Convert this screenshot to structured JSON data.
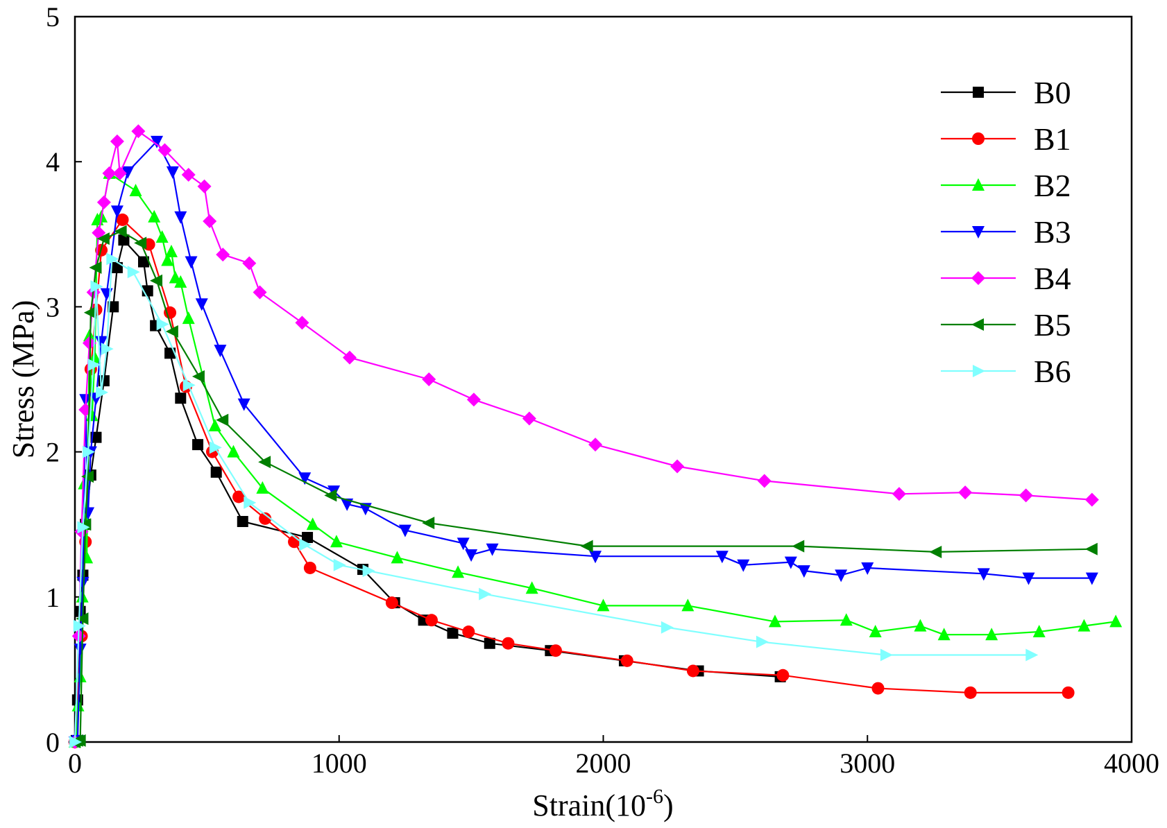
{
  "chart_data": {
    "type": "line",
    "title": "",
    "xlabel": "Strain",
    "xlabel_unit_base": "10",
    "xlabel_unit_exp": "-6",
    "ylabel": "Stress (MPa)",
    "xlim": [
      0,
      4000
    ],
    "ylim": [
      0,
      5
    ],
    "xticks": [
      0,
      1000,
      2000,
      3000,
      4000
    ],
    "yticks": [
      0,
      1,
      2,
      3,
      4,
      5
    ],
    "xtick_labels": [
      "0",
      "1000",
      "2000",
      "3000",
      "4000"
    ],
    "ytick_labels": [
      "0",
      "1",
      "2",
      "3",
      "4",
      "5"
    ],
    "legend_position": "top-right",
    "grid": false,
    "series": [
      {
        "name": "B0",
        "color": "#000000",
        "marker": "square",
        "x": [
          0,
          5,
          10,
          20,
          30,
          40,
          60,
          80,
          110,
          145,
          160,
          185,
          260,
          275,
          305,
          360,
          400,
          465,
          535,
          635,
          880,
          1090,
          1210,
          1320,
          1430,
          1570,
          1800,
          2080,
          2360,
          2670
        ],
        "y": [
          0,
          0.01,
          0.29,
          0.9,
          1.15,
          1.5,
          1.84,
          2.1,
          2.49,
          3.0,
          3.27,
          3.46,
          3.31,
          3.11,
          2.87,
          2.68,
          2.37,
          2.05,
          1.86,
          1.52,
          1.41,
          1.19,
          0.96,
          0.84,
          0.75,
          0.68,
          0.63,
          0.56,
          0.49,
          0.45
        ]
      },
      {
        "name": "B1",
        "color": "#ff0000",
        "marker": "circle",
        "x": [
          0,
          25,
          40,
          60,
          80,
          100,
          180,
          280,
          360,
          420,
          520,
          620,
          720,
          830,
          890,
          1200,
          1350,
          1490,
          1640,
          1820,
          2090,
          2340,
          2680,
          3040,
          3390,
          3760
        ],
        "y": [
          0,
          0.73,
          1.38,
          2.57,
          2.98,
          3.39,
          3.6,
          3.43,
          2.96,
          2.45,
          2.0,
          1.69,
          1.54,
          1.38,
          1.2,
          0.96,
          0.84,
          0.76,
          0.68,
          0.63,
          0.56,
          0.49,
          0.46,
          0.37,
          0.34,
          0.34
        ]
      },
      {
        "name": "B2",
        "color": "#00ff00",
        "marker": "triangle-up",
        "x": [
          0,
          5,
          12,
          20,
          28,
          35,
          45,
          55,
          65,
          75,
          85,
          100,
          130,
          230,
          300,
          330,
          350,
          365,
          380,
          400,
          430,
          530,
          600,
          710,
          900,
          990,
          1220,
          1450,
          1730,
          2000,
          2320,
          2650,
          2920,
          3030,
          3200,
          3290,
          3470,
          3650,
          3820,
          3940
        ],
        "y": [
          0,
          0.01,
          0.25,
          0.45,
          1.0,
          1.78,
          1.27,
          2.8,
          2.25,
          2.65,
          3.6,
          3.62,
          3.92,
          3.8,
          3.62,
          3.48,
          3.32,
          3.38,
          3.2,
          3.17,
          2.92,
          2.18,
          2.0,
          1.75,
          1.5,
          1.38,
          1.27,
          1.17,
          1.06,
          0.94,
          0.94,
          0.83,
          0.84,
          0.76,
          0.8,
          0.74,
          0.74,
          0.76,
          0.8,
          0.83
        ]
      },
      {
        "name": "B3",
        "color": "#0000ff",
        "marker": "triangle-down",
        "x": [
          0,
          10,
          20,
          30,
          40,
          50,
          60,
          80,
          100,
          120,
          160,
          200,
          310,
          370,
          400,
          440,
          480,
          550,
          640,
          870,
          980,
          1030,
          1100,
          1250,
          1470,
          1500,
          1580,
          1970,
          2450,
          2530,
          2710,
          2760,
          2900,
          3000,
          3440,
          3610,
          3850
        ],
        "y": [
          0,
          0.01,
          0.64,
          1.1,
          2.36,
          1.58,
          2.0,
          2.37,
          2.76,
          3.09,
          3.66,
          3.93,
          4.14,
          3.93,
          3.62,
          3.31,
          3.02,
          2.7,
          2.33,
          1.82,
          1.73,
          1.64,
          1.61,
          1.46,
          1.37,
          1.29,
          1.33,
          1.28,
          1.28,
          1.22,
          1.24,
          1.18,
          1.15,
          1.2,
          1.16,
          1.13,
          1.13
        ]
      },
      {
        "name": "B4",
        "color": "#ff00ff",
        "marker": "diamond",
        "x": [
          0,
          15,
          25,
          40,
          55,
          70,
          90,
          110,
          130,
          160,
          170,
          240,
          340,
          430,
          490,
          510,
          560,
          660,
          700,
          860,
          1040,
          1340,
          1510,
          1720,
          1970,
          2280,
          2610,
          3120,
          3370,
          3600,
          3850
        ],
        "y": [
          0,
          0.73,
          1.45,
          2.29,
          2.75,
          3.1,
          3.51,
          3.72,
          3.92,
          4.14,
          3.92,
          4.21,
          4.08,
          3.91,
          3.83,
          3.59,
          3.36,
          3.3,
          3.1,
          2.89,
          2.65,
          2.5,
          2.36,
          2.23,
          2.05,
          1.9,
          1.8,
          1.71,
          1.72,
          1.7,
          1.67
        ]
      },
      {
        "name": "B5",
        "color": "#007f00",
        "marker": "triangle-left",
        "x": [
          0,
          10,
          20,
          30,
          40,
          50,
          60,
          80,
          110,
          175,
          250,
          310,
          370,
          470,
          560,
          720,
          970,
          1340,
          1940,
          2740,
          3260,
          3850
        ],
        "y": [
          0,
          0.01,
          0.01,
          0.85,
          1.5,
          1.83,
          2.96,
          3.27,
          3.47,
          3.52,
          3.44,
          3.18,
          2.83,
          2.52,
          2.22,
          1.93,
          1.7,
          1.51,
          1.35,
          1.35,
          1.31,
          1.33
        ]
      },
      {
        "name": "B6",
        "color": "#80ffff",
        "marker": "triangle-right",
        "x": [
          0,
          15,
          30,
          50,
          70,
          80,
          100,
          120,
          140,
          220,
          330,
          430,
          530,
          660,
          870,
          1000,
          1110,
          1550,
          2240,
          2600,
          3070,
          3620
        ],
        "y": [
          0,
          0.8,
          1.48,
          2.0,
          2.6,
          3.14,
          2.41,
          2.71,
          3.33,
          3.24,
          2.88,
          2.46,
          2.03,
          1.65,
          1.36,
          1.22,
          1.18,
          1.02,
          0.79,
          0.69,
          0.6,
          0.6
        ]
      }
    ]
  }
}
